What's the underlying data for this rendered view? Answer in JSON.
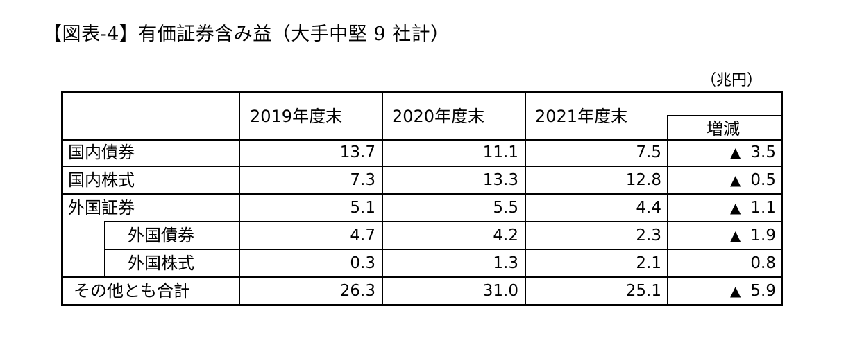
{
  "title": "【図表-4】有価証券含み益（大手中堅 9 社計）",
  "unit": "（兆円）",
  "columns": [
    "2019年度末",
    "2020年度末",
    "2021年度末",
    "増減"
  ],
  "rows": [
    {
      "label": "国内債券",
      "v2019": "13.7",
      "v2020": "11.1",
      "v2021": "7.5",
      "change_sign": "▲",
      "change": "3.5"
    },
    {
      "label": "国内株式",
      "v2019": "7.3",
      "v2020": "13.3",
      "v2021": "12.8",
      "change_sign": "▲",
      "change": "0.5"
    },
    {
      "label": "外国証券",
      "v2019": "5.1",
      "v2020": "5.5",
      "v2021": "4.4",
      "change_sign": "▲",
      "change": "1.1"
    },
    {
      "label": "外国債券",
      "v2019": "4.7",
      "v2020": "4.2",
      "v2021": "2.3",
      "change_sign": "▲",
      "change": "1.9"
    },
    {
      "label": "外国株式",
      "v2019": "0.3",
      "v2020": "1.3",
      "v2021": "2.1",
      "change_sign": "",
      "change": "0.8"
    },
    {
      "label": "その他とも合計",
      "v2019": "26.3",
      "v2020": "31.0",
      "v2021": "25.1",
      "change_sign": "▲",
      "change": "5.9"
    }
  ]
}
